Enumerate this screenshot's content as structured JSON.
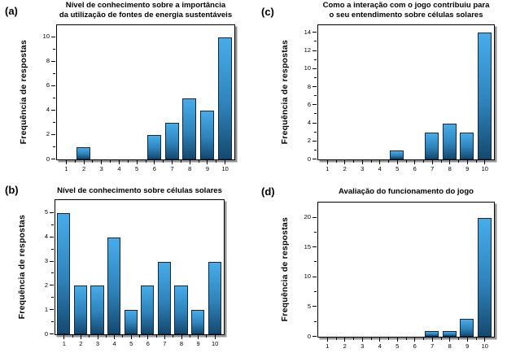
{
  "shared": {
    "x_categories": [
      "1",
      "2",
      "3",
      "4",
      "5",
      "6",
      "7",
      "8",
      "9",
      "10"
    ]
  },
  "chart_data": [
    {
      "id": "a",
      "panel_label": "(a)",
      "type": "bar",
      "title": "Nível de conhecimento sobre a importância da utilização de fontes de energia sustentáveis",
      "title_lines": [
        "Nível de conhecimento sobre a importância",
        "da utilização de fontes de energia sustentáveis"
      ],
      "ylabel": "Frequência de respostas",
      "xlabel": "",
      "categories": [
        1,
        2,
        3,
        4,
        5,
        6,
        7,
        8,
        9,
        10
      ],
      "values": [
        0,
        1,
        0,
        0,
        0,
        2,
        3,
        5,
        4,
        10
      ],
      "yticks": [
        0,
        2,
        4,
        6,
        8,
        10
      ],
      "ylim": [
        0,
        10.9
      ],
      "grid": false,
      "legend": null
    },
    {
      "id": "b",
      "panel_label": "(b)",
      "type": "bar",
      "title": "Nível de conhecimento sobre células solares",
      "title_lines": [
        "Nível de conhecimento sobre células solares"
      ],
      "ylabel": "Frequência de respostas",
      "xlabel": "",
      "categories": [
        1,
        2,
        3,
        4,
        5,
        6,
        7,
        8,
        9,
        10
      ],
      "values": [
        5,
        2,
        2,
        4,
        1,
        2,
        3,
        2,
        1,
        3
      ],
      "yticks": [
        0,
        1,
        2,
        3,
        4,
        5
      ],
      "ylim": [
        0,
        5.5
      ],
      "grid": false,
      "legend": null
    },
    {
      "id": "c",
      "panel_label": "(c)",
      "type": "bar",
      "title": "Como a interação com o jogo contribuiu para o seu entendimento sobre células solares",
      "title_lines": [
        "Como a interação com o jogo contribuiu para",
        "o seu entendimento sobre células solares"
      ],
      "ylabel": "Frequência de respostas",
      "xlabel": "",
      "categories": [
        1,
        2,
        3,
        4,
        5,
        6,
        7,
        8,
        9,
        10
      ],
      "values": [
        0,
        0,
        0,
        0,
        1,
        0,
        3,
        4,
        3,
        14
      ],
      "yticks": [
        0,
        2,
        4,
        6,
        8,
        10,
        12,
        14
      ],
      "ylim": [
        0,
        14.75
      ],
      "grid": false,
      "legend": null
    },
    {
      "id": "d",
      "panel_label": "(d)",
      "type": "bar",
      "title": "Avaliação do funcionamento do jogo",
      "title_lines": [
        "Avaliação do funcionamento do jogo"
      ],
      "ylabel": "Frequência de respostas",
      "xlabel": "",
      "categories": [
        1,
        2,
        3,
        4,
        5,
        6,
        7,
        8,
        9,
        10
      ],
      "values": [
        0,
        0,
        0,
        0,
        0,
        0,
        1,
        1,
        3,
        20
      ],
      "yticks": [
        0,
        5,
        10,
        15,
        20
      ],
      "ylim": [
        0,
        22.4
      ],
      "grid": false,
      "legend": null
    }
  ],
  "style": {
    "bar_gradient_top": "#47ACE9",
    "bar_gradient_mid": "#2F83BA",
    "bar_gradient_bottom": "#15496F",
    "bar_border": "#0D2B42",
    "frame_color": "#000000",
    "frame_shadow": "#969696",
    "text_color": "#000000",
    "background": "#FFFFFF"
  }
}
